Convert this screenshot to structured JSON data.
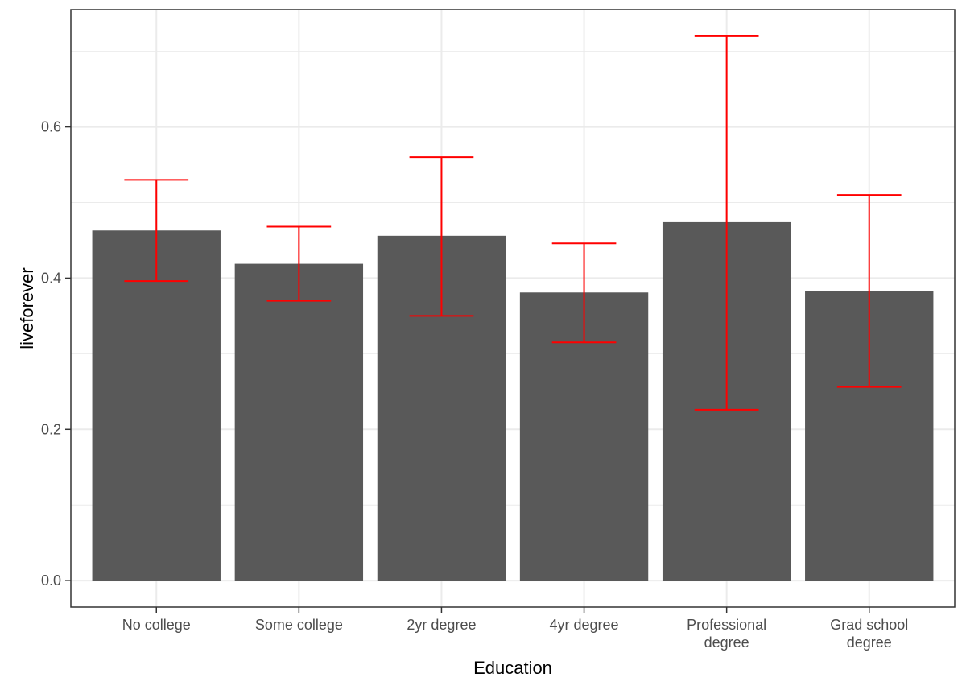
{
  "chart_data": {
    "type": "bar",
    "title": "",
    "xlabel": "Education",
    "ylabel": "liveforever",
    "categories": [
      [
        "No college"
      ],
      [
        "Some college"
      ],
      [
        "2yr degree"
      ],
      [
        "4yr degree"
      ],
      [
        "Professional",
        "degree"
      ],
      [
        "Grad school",
        "degree"
      ]
    ],
    "values": [
      0.463,
      0.419,
      0.456,
      0.381,
      0.474,
      0.383
    ],
    "error_low": [
      0.396,
      0.37,
      0.35,
      0.315,
      0.226,
      0.256
    ],
    "error_high": [
      0.53,
      0.468,
      0.56,
      0.446,
      0.72,
      0.51
    ],
    "ylim": [
      -0.035,
      0.755
    ],
    "yticks": [
      0.0,
      0.2,
      0.4,
      0.6
    ],
    "ytick_labels": [
      "0.0",
      "0.2",
      "0.4",
      "0.6"
    ],
    "grid": true,
    "colors": {
      "bar": "#595959",
      "error": "#ff0000",
      "grid": "#ebebeb",
      "panel_border": "#333333",
      "tick": "#333333"
    }
  }
}
